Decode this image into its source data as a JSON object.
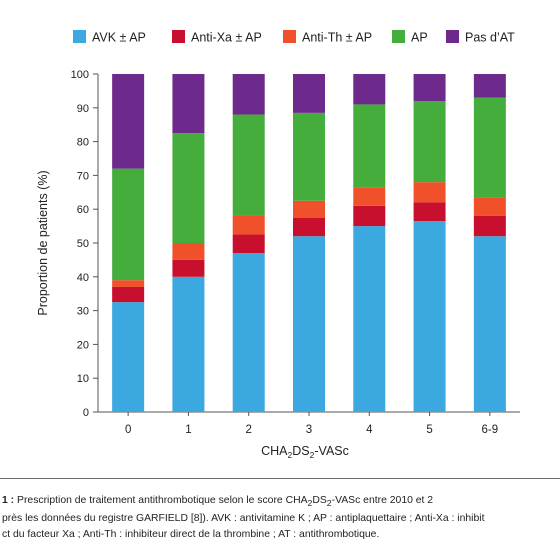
{
  "chart_data": {
    "type": "bar",
    "stacked": true,
    "categories": [
      "0",
      "1",
      "2",
      "3",
      "4",
      "5",
      "6-9"
    ],
    "series": [
      {
        "name": "AVK ± AP",
        "color": "#3ba8e0",
        "values": [
          32.5,
          40,
          47,
          52,
          55,
          56.5,
          52
        ]
      },
      {
        "name": "Anti-Xa ± AP",
        "color": "#c8102e",
        "values": [
          4.5,
          5,
          5.5,
          5.5,
          6,
          5.5,
          6
        ]
      },
      {
        "name": "Anti-Th ± AP",
        "color": "#f0502a",
        "values": [
          2,
          5,
          5.5,
          5,
          5.5,
          6,
          5.5
        ]
      },
      {
        "name": "AP",
        "color": "#44ad3c",
        "values": [
          33,
          32.5,
          30,
          26,
          24.5,
          24,
          29.5
        ]
      },
      {
        "name": "Pas d’AT",
        "color": "#6d2a8c",
        "values": [
          28,
          17.5,
          12,
          11.5,
          9,
          8,
          7
        ]
      }
    ],
    "ylabel": "Proportion de patients (%)",
    "xlabel_main": "CHA",
    "xlabel_sub1": "2",
    "xlabel_mid": "DS",
    "xlabel_sub2": "2",
    "xlabel_end": "-VASc",
    "ylim": [
      0,
      100
    ],
    "yticks": [
      0,
      10,
      20,
      30,
      40,
      50,
      60,
      70,
      80,
      90,
      100
    ],
    "legend_position": "top",
    "grid": false
  },
  "caption": {
    "fig_label": "1 :",
    "line1_a": " Prescription de traitement antithrombotique selon le score CHA",
    "line1_sub1": "2",
    "line1_b": "DS",
    "line1_sub2": "2",
    "line1_c": "-VASc entre 2010 et 2",
    "line2": "près les données du registre GARFIELD [8]). AVK : antivitamine K ; AP : antiplaquettaire ; Anti-Xa : inhibit",
    "line3": "ct du facteur Xa ; Anti-Th : inhibiteur direct de la thrombine ; AT : antithrombotique."
  }
}
